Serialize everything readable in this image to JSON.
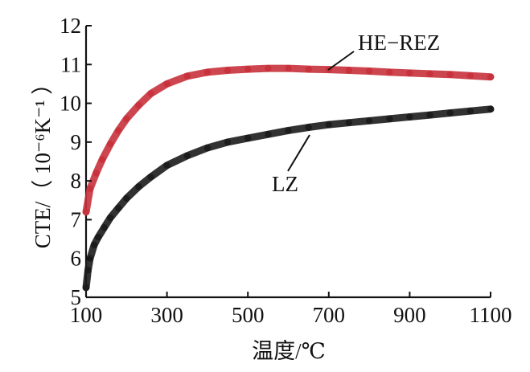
{
  "chart_data": {
    "type": "line",
    "xlabel": "温度/℃",
    "ylabel": "CTE/（ 10⁻⁶K⁻¹ ）",
    "xlim": [
      100,
      1100
    ],
    "ylim": [
      5,
      12
    ],
    "xticks": [
      100,
      300,
      500,
      700,
      900,
      1100
    ],
    "yticks": [
      5,
      6,
      7,
      8,
      9,
      10,
      11,
      12
    ],
    "grid": false,
    "legend": "inline labels",
    "series": [
      {
        "name": "HE−REZ",
        "color": "#c8323c",
        "x": [
          100,
          110,
          125,
          140,
          160,
          180,
          200,
          230,
          260,
          300,
          350,
          400,
          450,
          500,
          550,
          600,
          650,
          700,
          750,
          800,
          850,
          900,
          950,
          1000,
          1050,
          1100
        ],
        "y": [
          7.2,
          7.8,
          8.2,
          8.55,
          8.95,
          9.3,
          9.6,
          9.95,
          10.25,
          10.5,
          10.7,
          10.8,
          10.85,
          10.88,
          10.9,
          10.9,
          10.88,
          10.87,
          10.85,
          10.83,
          10.8,
          10.78,
          10.76,
          10.74,
          10.71,
          10.68
        ]
      },
      {
        "name": "LZ",
        "color": "#1c1c1c",
        "x": [
          100,
          105,
          110,
          120,
          130,
          145,
          160,
          180,
          200,
          230,
          260,
          300,
          350,
          400,
          450,
          500,
          550,
          600,
          650,
          700,
          750,
          800,
          850,
          900,
          950,
          1000,
          1050,
          1100
        ],
        "y": [
          5.25,
          5.7,
          6.0,
          6.35,
          6.55,
          6.8,
          7.05,
          7.3,
          7.55,
          7.85,
          8.1,
          8.4,
          8.65,
          8.85,
          9.0,
          9.1,
          9.2,
          9.3,
          9.38,
          9.45,
          9.5,
          9.55,
          9.6,
          9.65,
          9.7,
          9.75,
          9.8,
          9.85
        ]
      }
    ],
    "annotations": [
      {
        "text": "HE−REZ",
        "series": 0
      },
      {
        "text": "LZ",
        "series": 1
      }
    ]
  }
}
